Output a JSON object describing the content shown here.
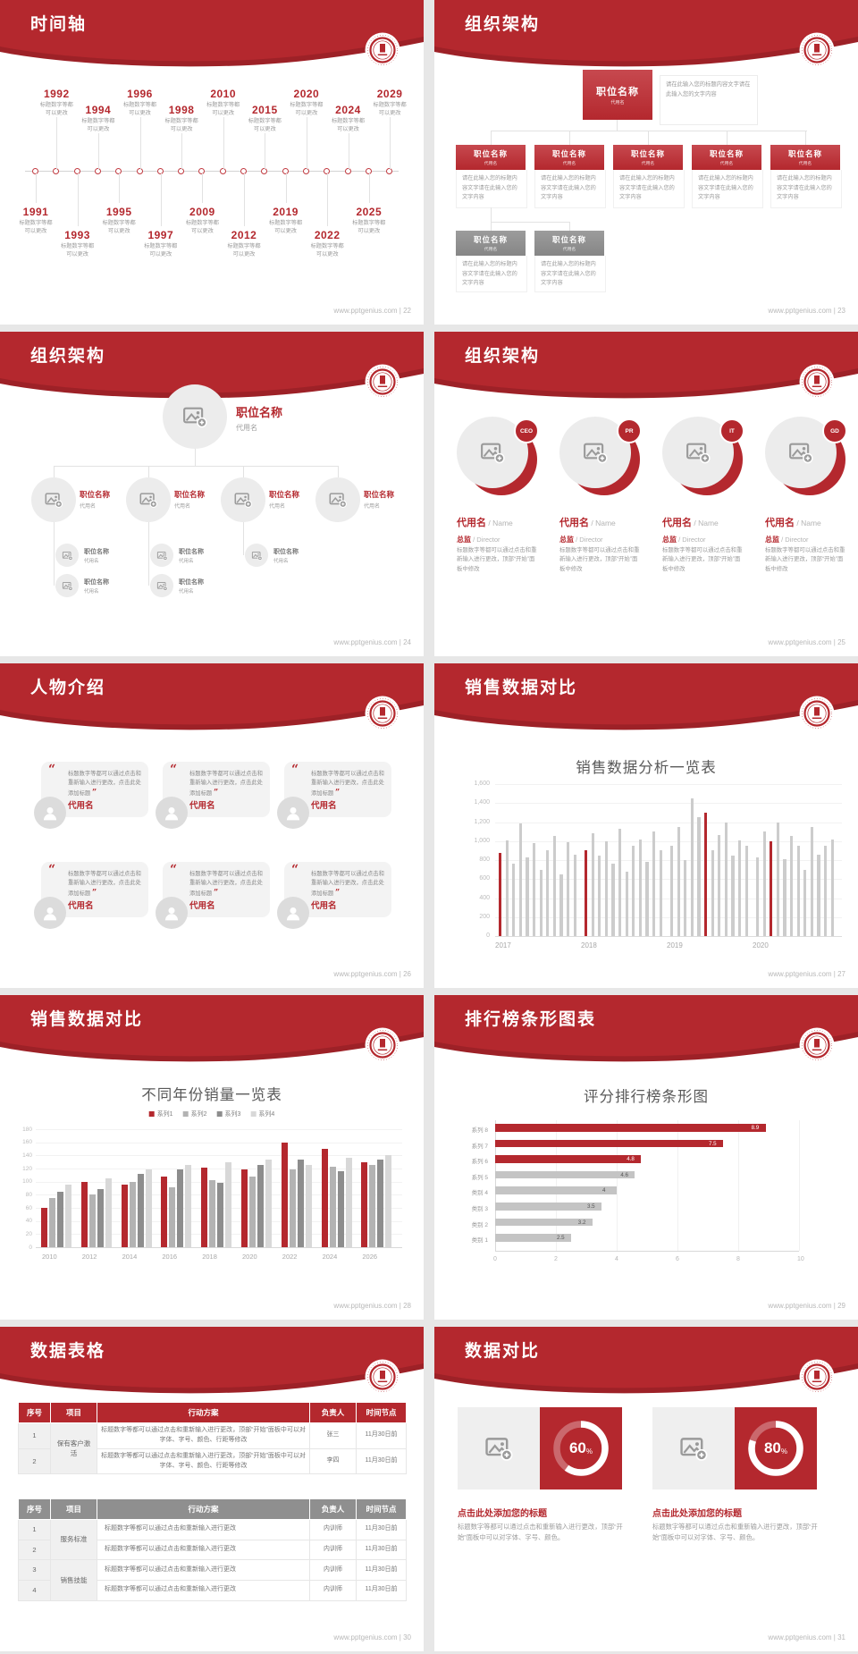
{
  "site": "www.pptgenius.com",
  "accent_color": "#b4282e",
  "icons": {
    "image_placeholder": "picture-with-plus",
    "person": "person-silhouette",
    "quote_open": "“",
    "quote_close": "”",
    "logo": "university-seal"
  },
  "slides": {
    "timeline": {
      "title": "时间轴",
      "footer": "www.pptgenius.com | 22",
      "caption_line1": "标题数字等都",
      "caption_line2": "可以更改",
      "years": [
        "1991",
        "1992",
        "1993",
        "1994",
        "1995",
        "1996",
        "1997",
        "1998",
        "2009",
        "2010",
        "2012",
        "2015",
        "2019",
        "2020",
        "2022",
        "2024",
        "2025",
        "2029"
      ]
    },
    "org_boxes": {
      "title": "组织架构",
      "footer": "www.pptgenius.com | 23",
      "node_title": "职位名称",
      "node_sub": "代用名",
      "root_note": "请在此输入您的标题内容文字请在此输入您的文字内容",
      "node_desc": "请在此输入您的标题内容文字请在此输入您的文字内容",
      "red_children": 5,
      "gray_children": 2
    },
    "org_photos": {
      "title": "组织架构",
      "footer": "www.pptgenius.com | 24",
      "node_title": "职位名称",
      "node_sub": "代用名",
      "level2_count": 4,
      "level3_counts": [
        2,
        2,
        1
      ]
    },
    "org_avatars": {
      "title": "组织架构",
      "footer": "www.pptgenius.com | 25",
      "badges": [
        "CEO",
        "PR",
        "IT",
        "GD"
      ],
      "name_cn": "代用名",
      "name_en": "Name",
      "role_cn": "总监",
      "role_en": "Director",
      "desc": "标题数字等都可以通过点击和重新输入进行更改，顶部“开始”面板中修改"
    },
    "people": {
      "title": "人物介绍",
      "footer": "www.pptgenius.com | 26",
      "card_count": 6,
      "quote": "标题数字等都可以通过点击和重新输入进行更改，点击此处添加标题",
      "name": "代用名"
    },
    "sales_bars": {
      "title": "销售数据对比",
      "footer": "www.pptgenius.com | 27"
    },
    "sales_grouped": {
      "title": "销售数据对比",
      "footer": "www.pptgenius.com | 28"
    },
    "ranking": {
      "title": "排行榜条形图表",
      "footer": "www.pptgenius.com | 29"
    },
    "tables": {
      "title": "数据表格",
      "footer": "www.pptgenius.com | 30",
      "headers": [
        "序号",
        "项目",
        "行动方案",
        "负责人",
        "时间节点"
      ],
      "table1": [
        {
          "project": "保有客户激活",
          "rows": [
            {
              "no": "1",
              "plan": "标题数字等都可以通过点击和重新输入进行更改，顶部“开始”面板中可以对字体、字号、颜色、行距等修改",
              "owner": "张三",
              "time": "11月30日前"
            },
            {
              "no": "2",
              "plan": "标题数字等都可以通过点击和重新输入进行更改，顶部“开始”面板中可以对字体、字号、颜色、行距等修改",
              "owner": "李四",
              "time": "11月30日前"
            }
          ]
        }
      ],
      "table2": [
        {
          "project": "服务标准",
          "rows": [
            {
              "no": "1",
              "plan": "标题数字等都可以通过点击和重新输入进行更改",
              "owner": "内训师",
              "time": "11月30日前"
            },
            {
              "no": "2",
              "plan": "标题数字等都可以通过点击和重新输入进行更改",
              "owner": "内训师",
              "time": "11月30日前"
            }
          ]
        },
        {
          "project": "销售技能",
          "rows": [
            {
              "no": "3",
              "plan": "标题数字等都可以通过点击和重新输入进行更改",
              "owner": "内训师",
              "time": "11月30日前"
            },
            {
              "no": "4",
              "plan": "标题数字等都可以通过点击和重新输入进行更改",
              "owner": "内训师",
              "time": "11月30日前"
            }
          ]
        }
      ]
    },
    "donuts": {
      "title": "数据对比",
      "footer": "www.pptgenius.com | 31",
      "item_title": "点击此处添加您的标题",
      "item_desc": "标题数字等都可以通过点击和重新输入进行更改，顶部“开始”面板中可以对字体、字号、颜色。",
      "percents": [
        "60",
        "80"
      ]
    }
  },
  "chart_data": [
    {
      "id": "sales_analysis",
      "type": "bar",
      "title": "销售数据分析一览表",
      "ylim": [
        0,
        1600
      ],
      "ytick_labels": [
        "1,600",
        "1,400",
        "1,200",
        "1,000",
        "800",
        "600",
        "400",
        "200",
        "0"
      ],
      "bar_color": "#cccccc",
      "accent_color": "#b4282e",
      "grid": true,
      "groups": [
        {
          "label": "2017",
          "accent_index": 0,
          "values": [
            880,
            1010,
            760,
            1190,
            830,
            980,
            700,
            905,
            1055,
            645,
            985,
            860
          ]
        },
        {
          "label": "2018",
          "accent_index": 0,
          "values": [
            900,
            1085,
            845,
            1000,
            765,
            1125,
            680,
            950,
            1020,
            785,
            1100,
            905
          ]
        },
        {
          "label": "2019",
          "accent_index": 5,
          "values": [
            950,
            1150,
            800,
            1450,
            1250,
            1300,
            900,
            1060,
            1200,
            850,
            1005,
            955
          ]
        },
        {
          "label": "2020",
          "accent_index": 2,
          "values": [
            830,
            1100,
            1000,
            1200,
            805,
            1050,
            950,
            700,
            1150,
            855,
            950,
            1020
          ]
        }
      ]
    },
    {
      "id": "yearly_sales",
      "type": "grouped-bar",
      "title": "不同年份销量一览表",
      "ylim": [
        0,
        180
      ],
      "ytick_step": 20,
      "categories": [
        "2010",
        "2012",
        "2014",
        "2016",
        "2018",
        "2020",
        "2022",
        "2024",
        "2026"
      ],
      "legend": [
        "系列1",
        "系列2",
        "系列3",
        "系列4"
      ],
      "legend_position": "top",
      "series_colors": [
        "#b4282e",
        "#b3b3b3",
        "#8d8d8d",
        "#d8d8d8"
      ],
      "grid": true,
      "series": [
        {
          "name": "系列1",
          "values": [
            60,
            100,
            95,
            108,
            122,
            118,
            160,
            150,
            130
          ]
        },
        {
          "name": "系列2",
          "values": [
            75,
            80,
            100,
            92,
            102,
            108,
            118,
            123,
            126
          ]
        },
        {
          "name": "系列3",
          "values": [
            85,
            88,
            112,
            118,
            98,
            126,
            133,
            116,
            133
          ]
        },
        {
          "name": "系列4",
          "values": [
            95,
            105,
            118,
            125,
            130,
            133,
            126,
            136,
            140
          ]
        }
      ]
    },
    {
      "id": "ranking",
      "type": "horizontal-bar",
      "title": "评分排行榜条形图",
      "xlim": [
        0,
        10
      ],
      "xticks": [
        "0",
        "2",
        "4",
        "6",
        "8",
        "10"
      ],
      "categories": [
        "系列 8",
        "系列 7",
        "系列 6",
        "系列 5",
        "类别 4",
        "类别 3",
        "类别 2",
        "类别 1"
      ],
      "values": [
        8.9,
        7.5,
        4.8,
        4.6,
        4,
        3.5,
        3.2,
        2.5
      ],
      "bar_colors": [
        "#b4282e",
        "#b4282e",
        "#b4282e",
        "#c4c4c4",
        "#c4c4c4",
        "#c4c4c4",
        "#c4c4c4",
        "#c4c4c4"
      ],
      "grid": true
    },
    {
      "id": "completion_donuts",
      "type": "donut",
      "values": [
        60,
        80
      ],
      "unit": "%",
      "ring_color": "#ffffff",
      "bg_color": "#b4282e"
    }
  ]
}
